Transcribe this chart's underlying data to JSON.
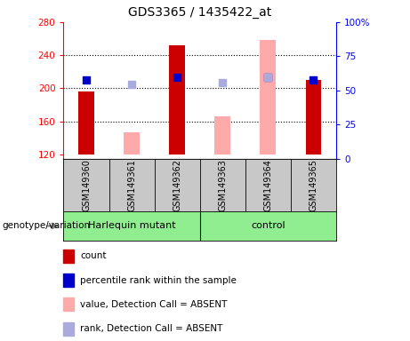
{
  "title": "GDS3365 / 1435422_at",
  "samples": [
    "GSM149360",
    "GSM149361",
    "GSM149362",
    "GSM149363",
    "GSM149364",
    "GSM149365"
  ],
  "ylim_left": [
    115,
    280
  ],
  "ylim_right": [
    0,
    100
  ],
  "yticks_left": [
    120,
    160,
    200,
    240,
    280
  ],
  "yticks_right": [
    0,
    25,
    50,
    75,
    100
  ],
  "bar_values": [
    196,
    null,
    252,
    null,
    null,
    210
  ],
  "bar_absent_values": [
    null,
    147,
    null,
    166,
    258,
    null
  ],
  "blue_square_values": [
    210,
    null,
    213,
    null,
    213,
    210
  ],
  "lavender_square_values": [
    null,
    205,
    null,
    207,
    213,
    null
  ],
  "bar_color": "#cc0000",
  "bar_absent_color": "#ffaaaa",
  "blue_square_color": "#0000cc",
  "lavender_square_color": "#aaaadd",
  "bar_bottom": 120,
  "group1_label": "Harlequin mutant",
  "group2_label": "control",
  "xlabel_label": "genotype/variation",
  "legend_items": [
    {
      "label": "count",
      "color": "#cc0000"
    },
    {
      "label": "percentile rank within the sample",
      "color": "#0000cc"
    },
    {
      "label": "value, Detection Call = ABSENT",
      "color": "#ffaaaa"
    },
    {
      "label": "rank, Detection Call = ABSENT",
      "color": "#aaaadd"
    }
  ],
  "xticklabel_area_color": "#c8c8c8",
  "group_color": "#90ee90",
  "dotted_gridlines": [
    160,
    200,
    240
  ]
}
